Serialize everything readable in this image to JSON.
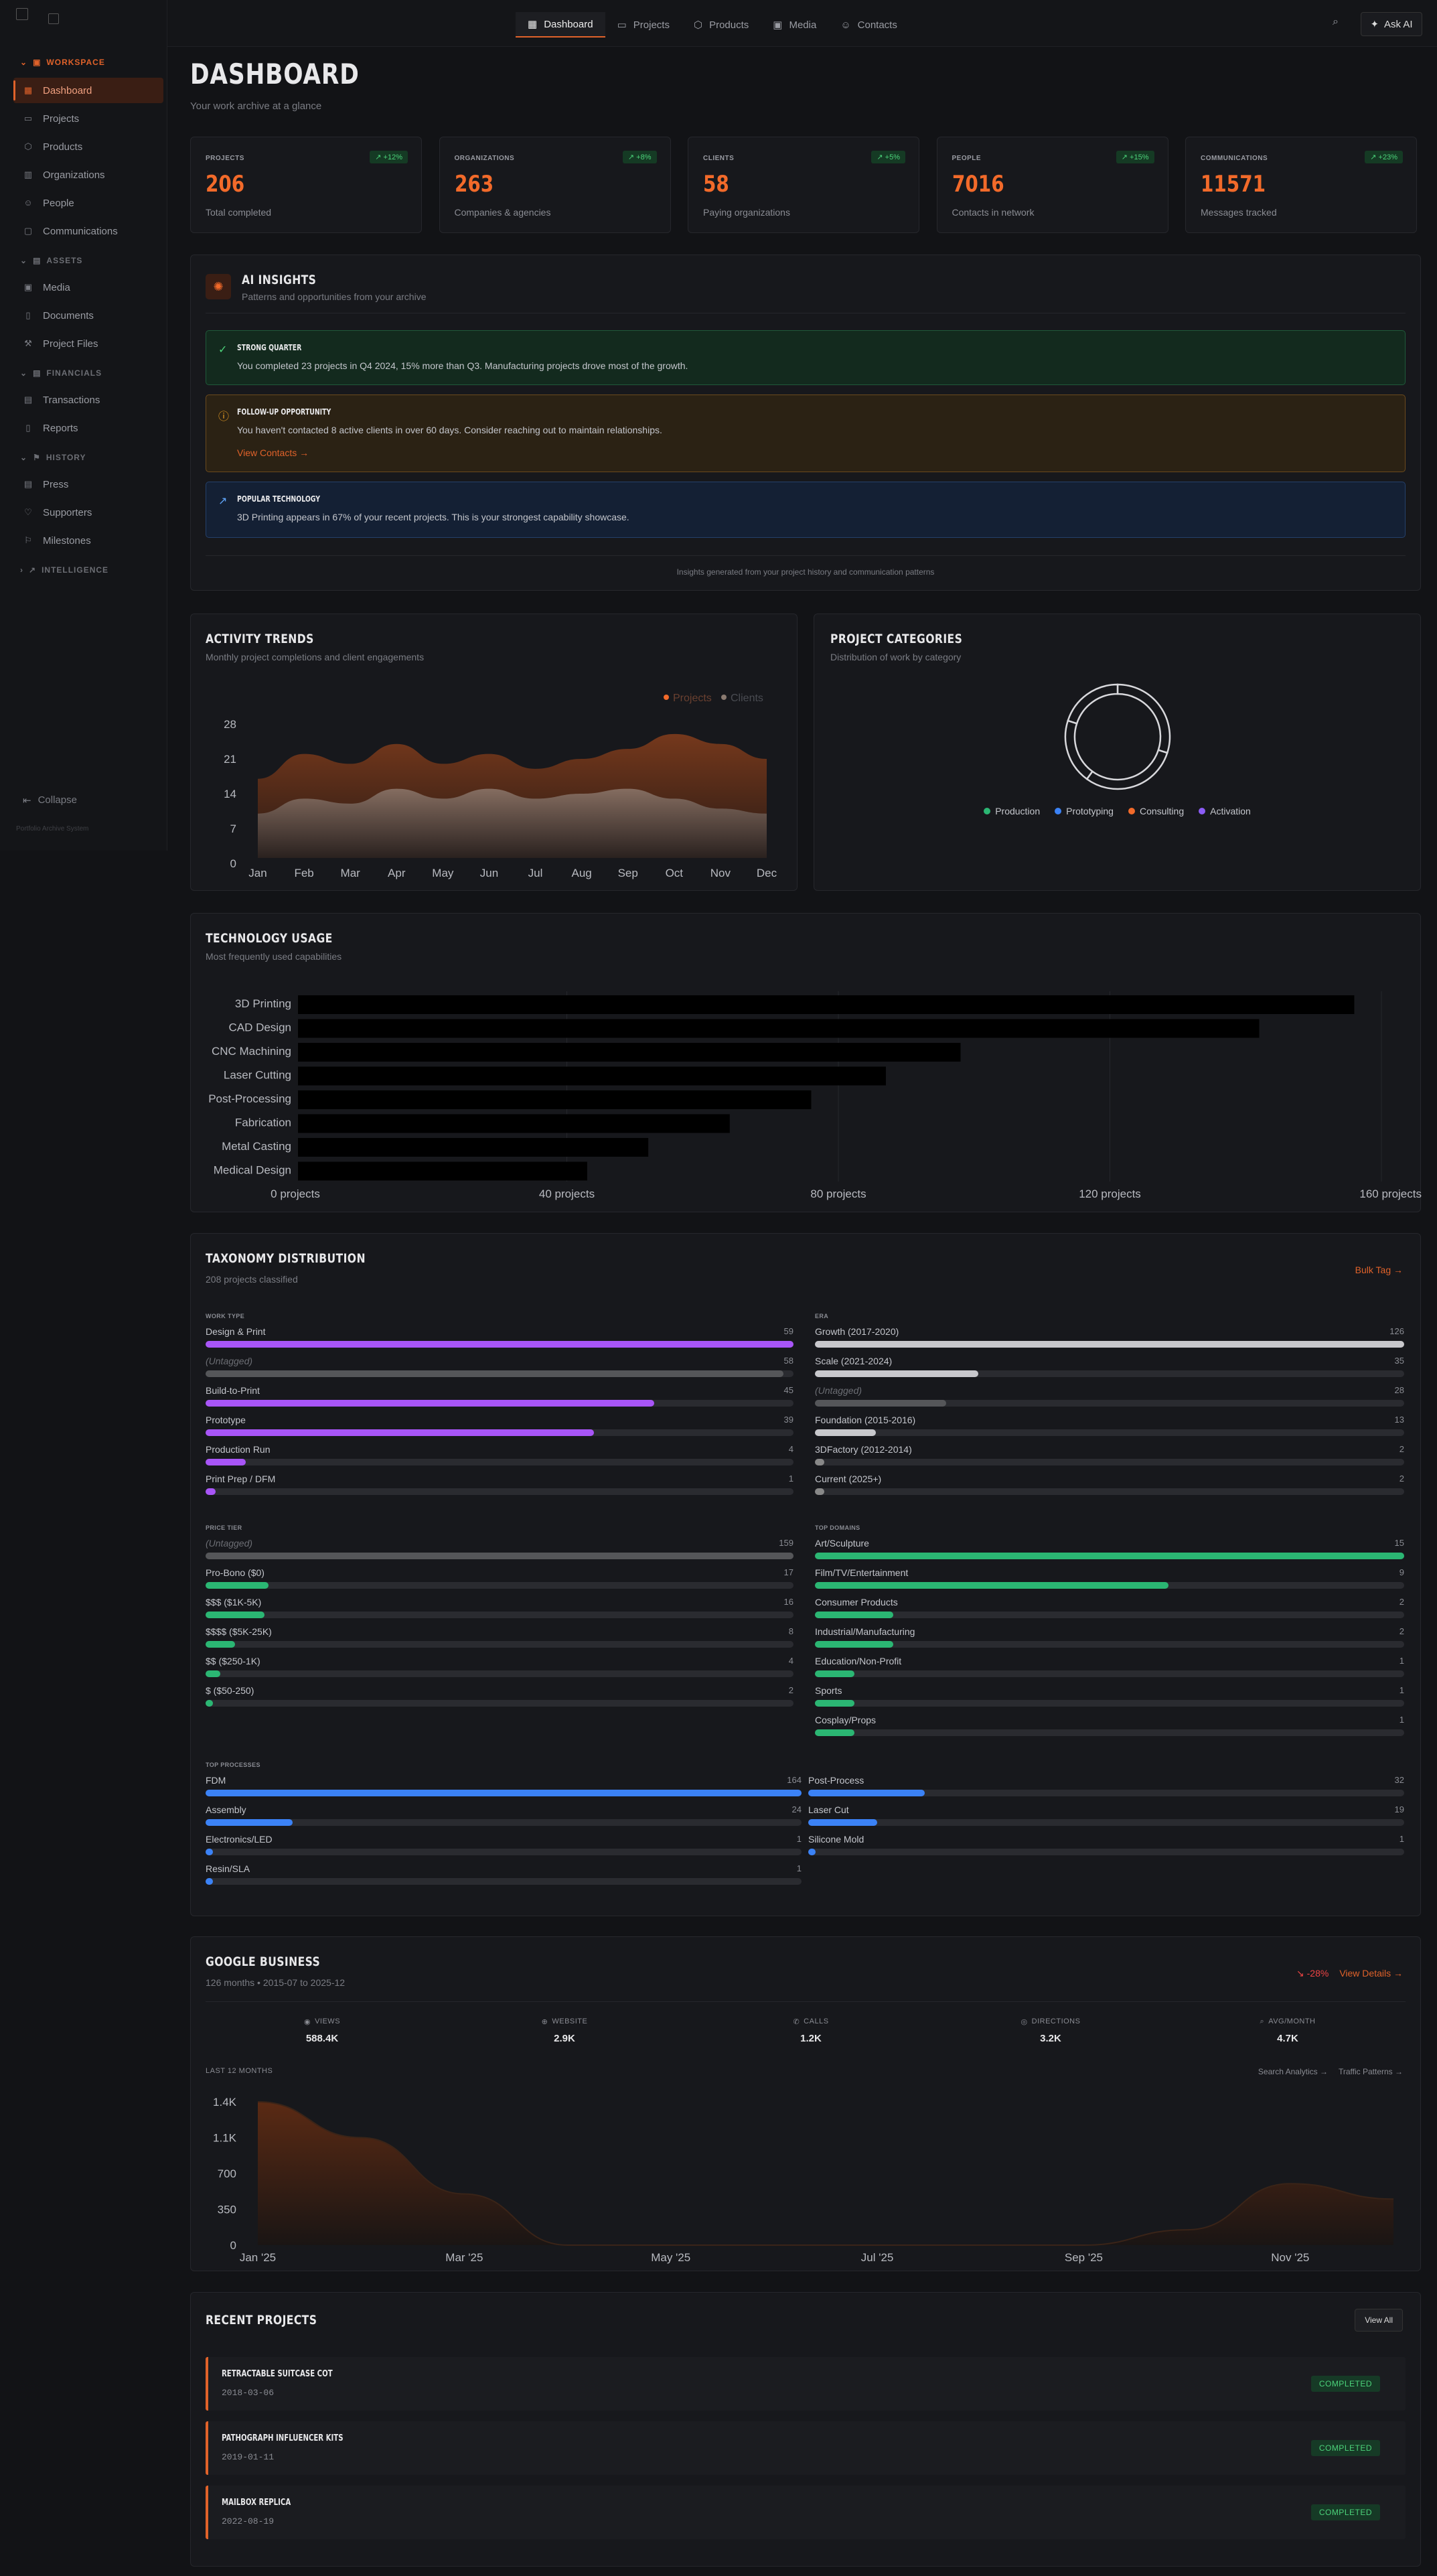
{
  "sidebar": {
    "sections": [
      {
        "label": "WORKSPACE",
        "items": [
          "Dashboard",
          "Projects",
          "Products",
          "Organizations",
          "People",
          "Communications"
        ]
      },
      {
        "label": "ASSETS",
        "items": [
          "Media",
          "Documents",
          "Project Files"
        ]
      },
      {
        "label": "FINANCIALS",
        "items": [
          "Transactions",
          "Reports"
        ]
      },
      {
        "label": "HISTORY",
        "items": [
          "Press",
          "Supporters",
          "Milestones"
        ]
      },
      {
        "label": "INTELLIGENCE",
        "items": []
      }
    ],
    "collapse": "Collapse",
    "footer": "Portfolio Archive System"
  },
  "topnav": {
    "tabs": [
      "Dashboard",
      "Projects",
      "Products",
      "Media",
      "Contacts"
    ],
    "ask": "Ask AI"
  },
  "header": {
    "title": "DASHBOARD",
    "subtitle": "Your work archive at a glance"
  },
  "stats": [
    {
      "label": "PROJECTS",
      "badge": "+12%",
      "value": "206",
      "sub": "Total completed"
    },
    {
      "label": "ORGANIZATIONS",
      "badge": "+8%",
      "value": "263",
      "sub": "Companies & agencies"
    },
    {
      "label": "CLIENTS",
      "badge": "+5%",
      "value": "58",
      "sub": "Paying organizations"
    },
    {
      "label": "PEOPLE",
      "badge": "+15%",
      "value": "7016",
      "sub": "Contacts in network"
    },
    {
      "label": "COMMUNICATIONS",
      "badge": "+23%",
      "value": "11571",
      "sub": "Messages tracked"
    }
  ],
  "insights": {
    "title": "AI INSIGHTS",
    "subtitle": "Patterns and opportunities from your archive",
    "items": [
      {
        "title": "STRONG QUARTER",
        "text": "You completed 23 projects in Q4 2024, 15% more than Q3. Manufacturing projects drove most of the growth."
      },
      {
        "title": "FOLLOW-UP OPPORTUNITY",
        "text": "You haven't contacted 8 active clients in over 60 days. Consider reaching out to maintain relationships.",
        "link": "View Contacts →"
      },
      {
        "title": "POPULAR TECHNOLOGY",
        "text": "3D Printing appears in 67% of your recent projects. This is your strongest capability showcase."
      }
    ],
    "footer": "Insights generated from your project history and communication patterns"
  },
  "activity": {
    "title": "ACTIVITY TRENDS",
    "subtitle": "Monthly project completions and client engagements",
    "legend": [
      "Projects",
      "Clients"
    ]
  },
  "categories": {
    "title": "PROJECT CATEGORIES",
    "subtitle": "Distribution of work by category",
    "legend": [
      {
        "name": "Production",
        "color": "#2bb673"
      },
      {
        "name": "Prototyping",
        "color": "#3b82f6"
      },
      {
        "name": "Consulting",
        "color": "#f26a2a"
      },
      {
        "name": "Activation",
        "color": "#8b5cf6"
      }
    ]
  },
  "technology": {
    "title": "TECHNOLOGY USAGE",
    "subtitle": "Most frequently used capabilities"
  },
  "taxonomy": {
    "title": "TAXONOMY DISTRIBUTION",
    "subtitle": "208 projects classified",
    "action": "Bulk Tag →",
    "groups": [
      {
        "label": "WORK TYPE",
        "color": "#a855f7",
        "max": 59,
        "rows": [
          [
            "Design & Print",
            59
          ],
          [
            "(Untagged)",
            58
          ],
          [
            "Build-to-Print",
            45
          ],
          [
            "Prototype",
            39
          ],
          [
            "Production Run",
            4
          ],
          [
            "Print Prep / DFM",
            1
          ]
        ]
      },
      {
        "label": "ERA",
        "color": "#c8c8cc",
        "max": 126,
        "rows": [
          [
            "Growth (2017-2020)",
            126
          ],
          [
            "Scale (2021-2024)",
            35
          ],
          [
            "(Untagged)",
            28
          ],
          [
            "Foundation (2015-2016)",
            13
          ],
          [
            "3DFactory (2012-2014)",
            2
          ],
          [
            "Current (2025+)",
            2
          ]
        ]
      },
      {
        "label": "PRICE TIER",
        "color": "#2bb673",
        "max": 159,
        "rows": [
          [
            "(Untagged)",
            159
          ],
          [
            "Pro-Bono ($0)",
            17
          ],
          [
            "$$$ ($1K-5K)",
            16
          ],
          [
            "$$$$ ($5K-25K)",
            8
          ],
          [
            "$$ ($250-1K)",
            4
          ],
          [
            "$ ($50-250)",
            2
          ]
        ]
      },
      {
        "label": "TOP DOMAINS",
        "color": "#2bb673",
        "max": 15,
        "rows": [
          [
            "Art/Sculpture",
            15
          ],
          [
            "Film/TV/Entertainment",
            9
          ],
          [
            "Consumer Products",
            2
          ],
          [
            "Industrial/Manufacturing",
            2
          ],
          [
            "Education/Non-Profit",
            1
          ],
          [
            "Sports",
            1
          ],
          [
            "Cosplay/Props",
            1
          ]
        ]
      },
      {
        "label": "TOP PROCESSES",
        "color": "#3b82f6",
        "max": 164,
        "rows": [
          [
            "FDM",
            164
          ],
          [
            "Assembly",
            24
          ],
          [
            "Electronics/LED",
            1
          ],
          [
            "Resin/SLA",
            1
          ]
        ]
      },
      {
        "label": "",
        "color": "#3b82f6",
        "max": 164,
        "rows": [
          [
            "Post-Process",
            32
          ],
          [
            "Laser Cut",
            19
          ],
          [
            "Silicone Mold",
            1
          ]
        ]
      }
    ]
  },
  "google": {
    "title": "GOOGLE BUSINESS",
    "subtitle": "126 months • 2015-07 to 2025-12",
    "trend": "-28%",
    "action": "View Details →",
    "metrics": [
      [
        "VIEWS",
        "588.4K"
      ],
      [
        "WEBSITE",
        "2.9K"
      ],
      [
        "CALLS",
        "1.2K"
      ],
      [
        "DIRECTIONS",
        "3.2K"
      ],
      [
        "AVG/MONTH",
        "4.7K"
      ]
    ],
    "chart_label": "LAST 12 MONTHS",
    "links": [
      "Search Analytics →",
      "Traffic Patterns →"
    ]
  },
  "recent": {
    "title": "RECENT PROJECTS",
    "action": "View All",
    "items": [
      {
        "name": "RETRACTABLE SUITCASE COT",
        "date": "2018-03-06",
        "status": "COMPLETED"
      },
      {
        "name": "PATHOGRAPH INFLUENCER KITS",
        "date": "2019-01-11",
        "status": "COMPLETED"
      },
      {
        "name": "MAILBOX REPLICA",
        "date": "2022-08-19",
        "status": "COMPLETED"
      }
    ]
  },
  "chart_data": [
    {
      "type": "area",
      "title": "ACTIVITY TRENDS",
      "categories": [
        "Jan",
        "Feb",
        "Mar",
        "Apr",
        "May",
        "Jun",
        "Jul",
        "Aug",
        "Sep",
        "Oct",
        "Nov",
        "Dec"
      ],
      "series": [
        {
          "name": "Projects",
          "values": [
            17,
            22,
            20,
            24,
            20,
            22,
            19,
            21,
            23,
            26,
            24,
            21
          ]
        },
        {
          "name": "Clients",
          "values": [
            10,
            13,
            12,
            15,
            13,
            15,
            13,
            14,
            15,
            13,
            11,
            10
          ]
        }
      ],
      "ylim": [
        0,
        28
      ],
      "yticks": [
        0,
        7,
        14,
        21,
        28
      ]
    },
    {
      "type": "pie",
      "title": "PROJECT CATEGORIES",
      "categories": [
        "Production",
        "Prototyping",
        "Consulting",
        "Activation"
      ],
      "values": [
        30,
        30,
        20,
        20
      ]
    },
    {
      "type": "bar",
      "title": "TECHNOLOGY USAGE",
      "orientation": "horizontal",
      "categories": [
        "3D Printing",
        "CAD Design",
        "CNC Machining",
        "Laser Cutting",
        "Post-Processing",
        "Fabrication",
        "Metal Casting",
        "Medical Design"
      ],
      "values": [
        156,
        142,
        98,
        87,
        76,
        64,
        52,
        43
      ],
      "xlim": [
        0,
        160
      ],
      "xticks": [
        "0 projects",
        "40 projects",
        "80 projects",
        "120 projects",
        "160 projects"
      ]
    },
    {
      "type": "area",
      "title": "LAST 12 MONTHS",
      "categories": [
        "Jan '25",
        "Mar '25",
        "May '25",
        "Jul '25",
        "Sep '25",
        "Nov '25"
      ],
      "x": [
        0,
        1,
        2,
        3,
        4,
        5,
        6,
        7,
        8,
        9,
        10,
        11
      ],
      "values": [
        1400,
        1050,
        500,
        0,
        0,
        0,
        0,
        0,
        0,
        150,
        600,
        450
      ],
      "ylim": [
        0,
        1400
      ],
      "yticks": [
        "0",
        "350",
        "700",
        "1.1K",
        "1.4K"
      ]
    }
  ]
}
